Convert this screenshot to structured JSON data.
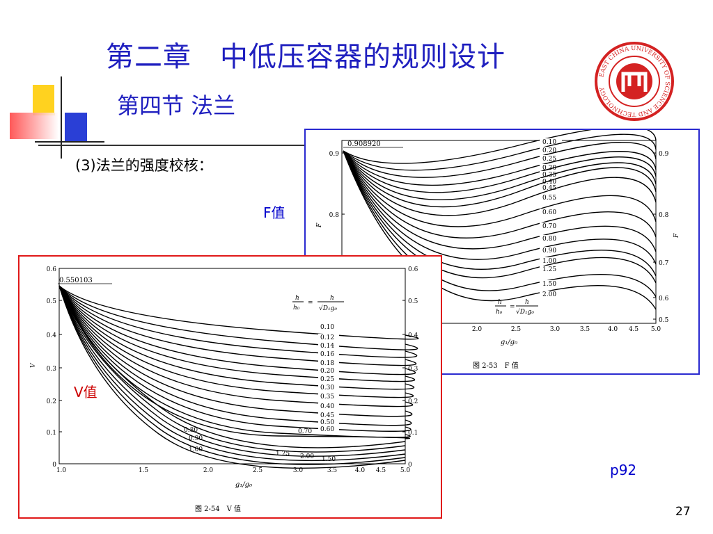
{
  "slide": {
    "title": "第二章　中低压容器的规则设计",
    "subtitle": "第四节 法兰",
    "item": "(3)法兰的强度校核：",
    "f_label": "F值",
    "v_label": "V值",
    "page_ref": "p92",
    "slide_number": "27",
    "colors": {
      "title": "#1f1fbf",
      "f_border": "#2a2ad0",
      "v_border": "#e01818",
      "logo": "#d42222"
    }
  },
  "logo": {
    "icon": "university-seal-icon",
    "text": "EAST CHINA UNIVERSITY OF SCIENCE AND TECHNOLOGY"
  },
  "f_figure": {
    "caption": "图 2-53　F 值",
    "y_axis_label": "F",
    "x_axis_label": "g₁/g₀",
    "start_value": "0.908920",
    "formula": "h/h₀ = h/√(D₁g₀)",
    "formula_lhs_num": "h",
    "formula_lhs_den": "h₀",
    "formula_rhs_num": "h",
    "formula_rhs_den": "√D₁g₀",
    "y_ticks": [
      "0.9",
      "0.8",
      "0.7",
      "0.6",
      "0.5"
    ],
    "x_ticks": [
      "2.0",
      "2.5",
      "3.0",
      "3.5",
      "4.0",
      "4.5",
      "5.0"
    ],
    "curve_labels": [
      "0.10",
      "0.20",
      "0.25",
      "0.30",
      "0.35",
      "0.40",
      "0.45",
      "0.55",
      "0.60",
      "0.70",
      "0.80",
      "0.90",
      "1.00",
      "1.25",
      "1.50",
      "2.00"
    ]
  },
  "v_figure": {
    "caption": "图 2-54　V 值",
    "y_axis_label": "V",
    "x_axis_label": "g₁/g₀",
    "start_value": "0.550103",
    "formula_lhs_num": "h",
    "formula_lhs_den": "h₀",
    "formula_rhs_num": "h",
    "formula_rhs_den": "√D₁g₀",
    "y_ticks": [
      "0.6",
      "0.5",
      "0.4",
      "0.3",
      "0.2",
      "0.1",
      "0"
    ],
    "x_ticks": [
      "1.0",
      "1.5",
      "2.0",
      "2.5",
      "3.0",
      "3.5",
      "4.0",
      "4.5",
      "5.0"
    ],
    "curve_labels": [
      "0.10",
      "0.12",
      "0.14",
      "0.16",
      "0.18",
      "0.20",
      "0.25",
      "0.30",
      "0.35",
      "0.40",
      "0.45",
      "0.50",
      "0.60",
      "0.70"
    ],
    "low_labels": [
      "0.80",
      "0.90",
      "1.00",
      "1.25",
      "2.00",
      "1.50"
    ]
  }
}
